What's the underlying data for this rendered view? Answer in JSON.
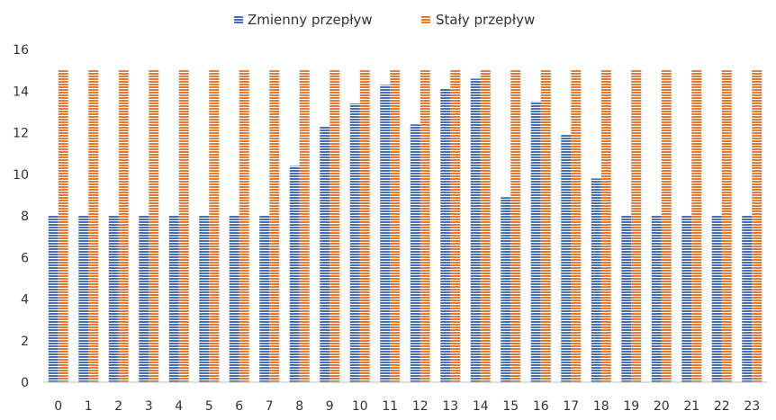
{
  "chart_data": {
    "type": "bar",
    "categories": [
      "0",
      "1",
      "2",
      "3",
      "4",
      "5",
      "6",
      "7",
      "8",
      "9",
      "10",
      "11",
      "12",
      "13",
      "14",
      "15",
      "16",
      "17",
      "18",
      "19",
      "20",
      "21",
      "22",
      "23"
    ],
    "series": [
      {
        "name": "Zmienny przepływ",
        "color": "#4a6fb0",
        "values": [
          8,
          8,
          8,
          8,
          8,
          8,
          8,
          8,
          10.4,
          12.3,
          13.4,
          14.3,
          12.4,
          14.1,
          14.6,
          8.9,
          13.5,
          11.9,
          9.8,
          8,
          8,
          8,
          8,
          8
        ]
      },
      {
        "name": "Stały przepływ",
        "color": "#e07b39",
        "values": [
          15,
          15,
          15,
          15,
          15,
          15,
          15,
          15,
          15,
          15,
          15,
          15,
          15,
          15,
          15,
          15,
          15,
          15,
          15,
          15,
          15,
          15,
          15,
          15
        ]
      }
    ],
    "ylim": [
      0,
      16
    ],
    "yticks": [
      "0",
      "2",
      "4",
      "6",
      "8",
      "10",
      "12",
      "14",
      "16"
    ],
    "legend_position": "top",
    "grid": false
  }
}
